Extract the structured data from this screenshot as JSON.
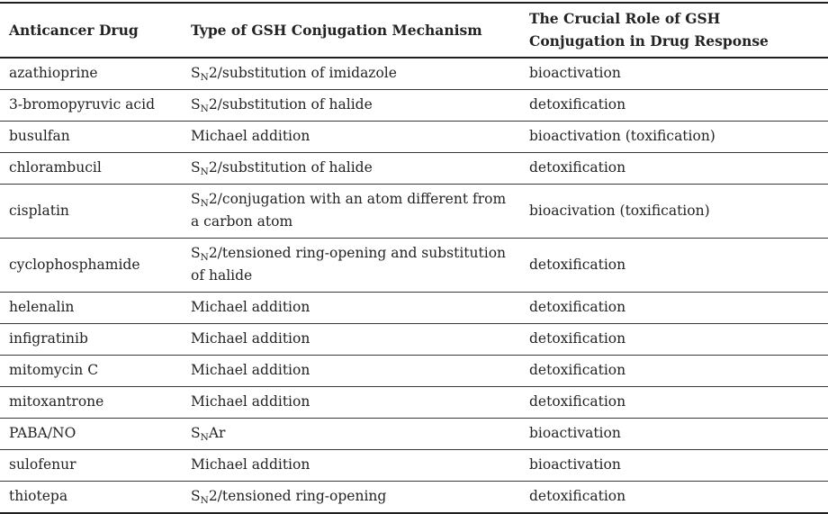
{
  "colors": {
    "text": "#232323",
    "border_thick": "#1f1f1f",
    "border_thin": "#3a3a3a",
    "background": "#ffffff"
  },
  "table": {
    "columns": [
      {
        "label": "Anticancer Drug"
      },
      {
        "label": "Type of GSH Conjugation Mechanism"
      },
      {
        "label": "The Crucial Role of GSH Conjugation in Drug Response"
      }
    ],
    "rows": [
      {
        "drug": "azathioprine",
        "mechanism": {
          "pre": "S",
          "sub": "N",
          "post": "2/substitution of imidazole"
        },
        "role": "bioactivation"
      },
      {
        "drug": "3-bromopyruvic acid",
        "mechanism": {
          "pre": "S",
          "sub": "N",
          "post": "2/substitution of halide"
        },
        "role": "detoxification"
      },
      {
        "drug": "busulfan",
        "mechanism": {
          "pre": "",
          "sub": "",
          "post": "Michael addition"
        },
        "role": "bioactivation (toxification)"
      },
      {
        "drug": "chlorambucil",
        "mechanism": {
          "pre": "S",
          "sub": "N",
          "post": "2/substitution of halide"
        },
        "role": "detoxification"
      },
      {
        "drug": "cisplatin",
        "mechanism": {
          "pre": "S",
          "sub": "N",
          "post": "2/conjugation with an atom different from a carbon atom"
        },
        "role": "bioacivation (toxification)"
      },
      {
        "drug": "cyclophosphamide",
        "mechanism": {
          "pre": "S",
          "sub": "N",
          "post": "2/tensioned ring-opening and substitution of halide"
        },
        "role": "detoxification"
      },
      {
        "drug": "helenalin",
        "mechanism": {
          "pre": "",
          "sub": "",
          "post": "Michael addition"
        },
        "role": "detoxification"
      },
      {
        "drug": "infigratinib",
        "mechanism": {
          "pre": "",
          "sub": "",
          "post": "Michael addition"
        },
        "role": "detoxification"
      },
      {
        "drug": "mitomycin C",
        "mechanism": {
          "pre": "",
          "sub": "",
          "post": "Michael addition"
        },
        "role": "detoxification"
      },
      {
        "drug": "mitoxantrone",
        "mechanism": {
          "pre": "",
          "sub": "",
          "post": "Michael addition"
        },
        "role": "detoxification"
      },
      {
        "drug": "PABA/NO",
        "mechanism": {
          "pre": "S",
          "sub": "N",
          "post": "Ar"
        },
        "role": "bioactivation"
      },
      {
        "drug": "sulofenur",
        "mechanism": {
          "pre": "",
          "sub": "",
          "post": "Michael addition"
        },
        "role": "bioactivation"
      },
      {
        "drug": "thiotepa",
        "mechanism": {
          "pre": "S",
          "sub": "N",
          "post": "2/tensioned ring-opening"
        },
        "role": "detoxification"
      }
    ]
  }
}
